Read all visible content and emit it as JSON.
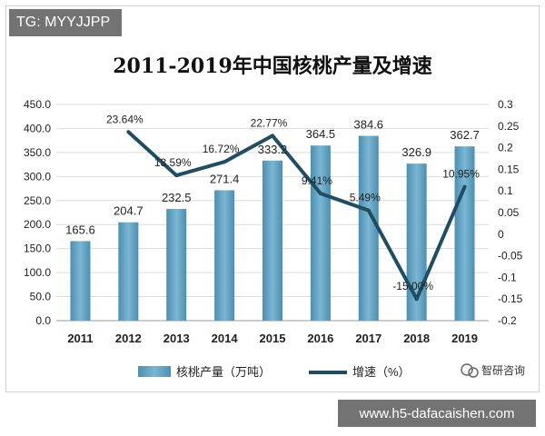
{
  "watermark_top": "TG: MYYJJPP",
  "watermark_bottom": "www.h5-dafacaishen.com",
  "source_logo": "智研咨询",
  "chart_data": {
    "type": "bar",
    "title": "2011-2019年中国核桃产量及增速",
    "categories": [
      "2011",
      "2012",
      "2013",
      "2014",
      "2015",
      "2016",
      "2017",
      "2018",
      "2019"
    ],
    "series": [
      {
        "name": "核桃产量（万吨）",
        "type": "bar",
        "axis": "left",
        "values": [
          165.6,
          204.7,
          232.5,
          271.4,
          333.2,
          364.5,
          384.6,
          326.9,
          362.7
        ],
        "labels": [
          "165.6",
          "204.7",
          "232.5",
          "271.4",
          "333.2",
          "364.5",
          "384.6",
          "326.9",
          "362.7"
        ],
        "color": "#5e9fbf"
      },
      {
        "name": "增速（%）",
        "type": "line",
        "axis": "right",
        "x": [
          "2012",
          "2013",
          "2014",
          "2015",
          "2016",
          "2017",
          "2018",
          "2019"
        ],
        "values": [
          0.2364,
          0.1359,
          0.1672,
          0.2277,
          0.0941,
          0.0549,
          -0.15,
          0.1095
        ],
        "labels": [
          "23.64%",
          "13.59%",
          "16.72%",
          "22.77%",
          "9.41%",
          "5.49%",
          "-15.00%",
          "10.95%"
        ],
        "color": "#1f4e63"
      }
    ],
    "ylim_left": [
      0,
      450
    ],
    "yticks_left": [
      "0.0",
      "50.0",
      "100.0",
      "150.0",
      "200.0",
      "250.0",
      "300.0",
      "350.0",
      "400.0",
      "450.0"
    ],
    "ylim_right": [
      -0.2,
      0.3
    ],
    "yticks_right": [
      "-0.2",
      "-0.15",
      "-0.1",
      "-0.05",
      "0",
      "0.05",
      "0.1",
      "0.15",
      "0.2",
      "0.25",
      "0.3"
    ],
    "grid": true,
    "legend": "bottom"
  }
}
